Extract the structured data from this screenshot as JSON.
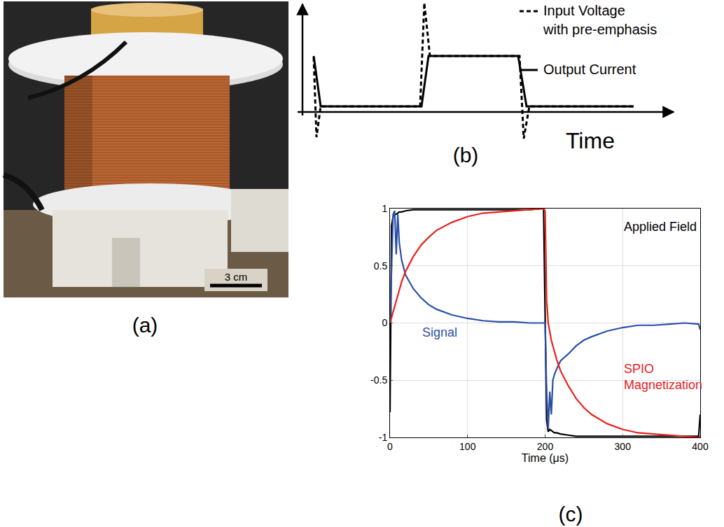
{
  "panels": {
    "a": {
      "label": "(a)",
      "scale_bar": "3 cm"
    },
    "b": {
      "label": "(b)",
      "axis_label": "Time",
      "legend": [
        {
          "lines": [
            "Input Voltage",
            "with pre-emphasis"
          ],
          "line_style": "dashed"
        },
        {
          "lines": [
            "Output Current"
          ],
          "line_style": "solid"
        }
      ]
    },
    "c": {
      "label": "(c)"
    }
  },
  "chart_data": {
    "type": "line",
    "x_label": "Time (μs)",
    "xlim": [
      0,
      400
    ],
    "xticks": [
      0,
      100,
      200,
      300,
      400
    ],
    "ylim": [
      -1,
      1
    ],
    "yticks": [
      -1,
      -0.5,
      0,
      0.5,
      1
    ],
    "grid": true,
    "x": [
      0,
      2,
      4,
      6,
      8,
      10,
      12,
      15,
      20,
      30,
      40,
      50,
      60,
      80,
      100,
      120,
      140,
      160,
      180,
      198,
      200,
      202,
      204,
      206,
      208,
      210,
      212,
      215,
      220,
      230,
      240,
      250,
      260,
      280,
      300,
      320,
      340,
      360,
      380,
      398,
      400
    ],
    "series": [
      {
        "name": "Applied Field",
        "color": "#000000",
        "values": [
          -0.78,
          0.85,
          0.93,
          0.95,
          0.95,
          0.96,
          0.97,
          0.97,
          0.98,
          0.99,
          0.99,
          0.99,
          0.99,
          0.99,
          0.99,
          0.99,
          0.99,
          0.99,
          0.99,
          1.0,
          0.2,
          -0.85,
          -0.95,
          -0.93,
          -0.94,
          -0.95,
          -0.96,
          -0.96,
          -0.97,
          -0.98,
          -0.99,
          -0.99,
          -0.99,
          -0.99,
          -0.99,
          -0.99,
          -0.99,
          -0.99,
          -0.99,
          -0.99,
          -0.8
        ]
      },
      {
        "name": "Signal",
        "color": "#2b4fa8",
        "values": [
          0,
          0.5,
          0.95,
          0.98,
          0.6,
          0.95,
          0.7,
          0.55,
          0.42,
          0.3,
          0.22,
          0.16,
          0.12,
          0.07,
          0.04,
          0.02,
          0.01,
          0.01,
          0.0,
          0.0,
          0.0,
          -0.6,
          -0.92,
          -0.6,
          -0.8,
          -0.5,
          -0.45,
          -0.4,
          -0.33,
          -0.27,
          -0.2,
          -0.15,
          -0.12,
          -0.07,
          -0.04,
          -0.02,
          -0.02,
          -0.01,
          0.0,
          -0.01,
          -0.06
        ]
      },
      {
        "name": "SPIO Magnetization",
        "color": "#e8221c",
        "values": [
          0,
          0.05,
          0.1,
          0.15,
          0.2,
          0.25,
          0.3,
          0.36,
          0.45,
          0.58,
          0.68,
          0.75,
          0.81,
          0.88,
          0.93,
          0.96,
          0.97,
          0.98,
          0.99,
          1.0,
          0.98,
          0.2,
          0.0,
          -0.08,
          -0.15,
          -0.2,
          -0.25,
          -0.32,
          -0.42,
          -0.55,
          -0.66,
          -0.74,
          -0.8,
          -0.88,
          -0.93,
          -0.96,
          -0.97,
          -0.98,
          -0.99,
          -1.0,
          -0.99
        ]
      }
    ],
    "annotations": [
      {
        "lines": [
          "Applied Field"
        ],
        "x": 300,
        "y": 0.84,
        "color": "#000000"
      },
      {
        "lines": [
          "Signal"
        ],
        "x": 40,
        "y": -0.08,
        "color": "#2b4fa8"
      },
      {
        "lines": [
          "SPIO",
          "Magnetization"
        ],
        "x": 300,
        "y": -0.47,
        "color": "#e8221c"
      }
    ]
  }
}
